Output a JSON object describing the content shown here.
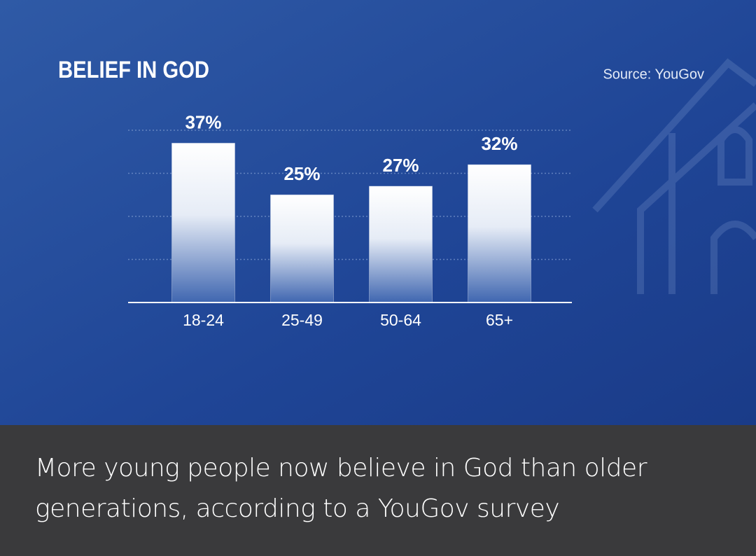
{
  "chart_data": {
    "type": "bar",
    "title": "BELIEF IN GOD",
    "source": "Source: YouGov",
    "categories": [
      "18-24",
      "25-49",
      "50-64",
      "65+"
    ],
    "values": [
      37,
      25,
      27,
      32
    ],
    "value_labels": [
      "37%",
      "25%",
      "27%",
      "32%"
    ],
    "color": "#ffffff",
    "ylim": [
      0,
      40
    ],
    "yticks": [
      10,
      20,
      30,
      40
    ],
    "grid": true
  },
  "caption": "More young people now believe in God than older generations, according to a YouGov survey"
}
